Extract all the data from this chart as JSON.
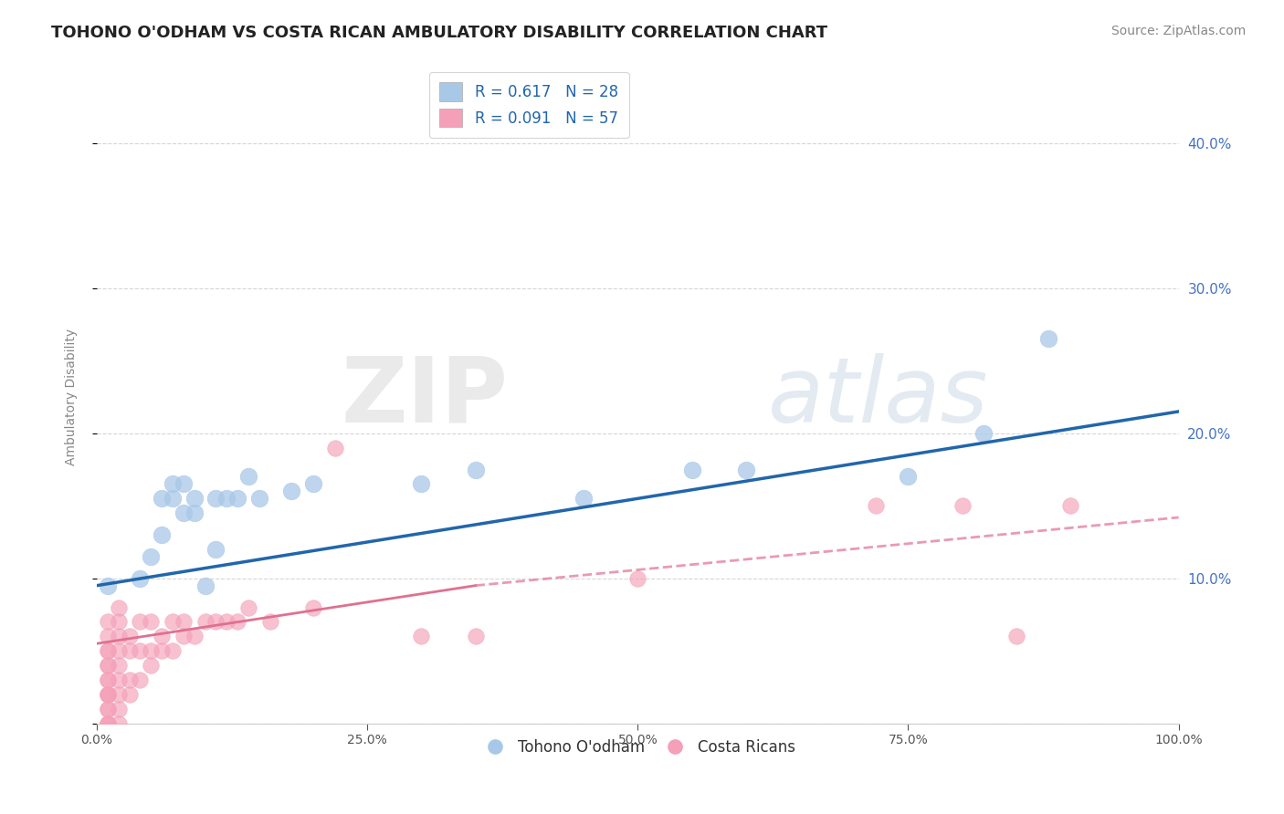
{
  "title": "TOHONO O'ODHAM VS COSTA RICAN AMBULATORY DISABILITY CORRELATION CHART",
  "source": "Source: ZipAtlas.com",
  "ylabel": "Ambulatory Disability",
  "legend_label_blue": "Tohono O'odham",
  "legend_label_pink": "Costa Ricans",
  "R_blue": 0.617,
  "N_blue": 28,
  "R_pink": 0.091,
  "N_pink": 57,
  "xlim": [
    0.0,
    1.0
  ],
  "ylim": [
    -0.02,
    0.46
  ],
  "plot_ylim": [
    0.0,
    0.45
  ],
  "xticks": [
    0.0,
    0.25,
    0.5,
    0.75,
    1.0
  ],
  "xtick_labels": [
    "0.0%",
    "25.0%",
    "50.0%",
    "75.0%",
    "100.0%"
  ],
  "yticks": [
    0.0,
    0.1,
    0.2,
    0.3,
    0.4
  ],
  "ytick_labels_right": [
    "",
    "10.0%",
    "20.0%",
    "30.0%",
    "40.0%"
  ],
  "blue_color": "#a8c8e8",
  "pink_color": "#f4a0b8",
  "blue_line_color": "#2166ac",
  "pink_line_color": "#e07090",
  "background_color": "#ffffff",
  "watermark_zip": "ZIP",
  "watermark_atlas": "atlas",
  "blue_x": [
    0.01,
    0.04,
    0.05,
    0.06,
    0.06,
    0.07,
    0.07,
    0.08,
    0.08,
    0.09,
    0.09,
    0.1,
    0.11,
    0.11,
    0.12,
    0.13,
    0.14,
    0.15,
    0.18,
    0.2,
    0.3,
    0.35,
    0.45,
    0.55,
    0.6,
    0.75,
    0.82,
    0.88
  ],
  "blue_y": [
    0.095,
    0.1,
    0.115,
    0.13,
    0.155,
    0.155,
    0.165,
    0.145,
    0.165,
    0.145,
    0.155,
    0.095,
    0.12,
    0.155,
    0.155,
    0.155,
    0.17,
    0.155,
    0.16,
    0.165,
    0.165,
    0.175,
    0.155,
    0.175,
    0.175,
    0.17,
    0.2,
    0.265
  ],
  "pink_x": [
    0.01,
    0.01,
    0.01,
    0.01,
    0.01,
    0.01,
    0.01,
    0.01,
    0.01,
    0.01,
    0.01,
    0.01,
    0.01,
    0.01,
    0.01,
    0.01,
    0.02,
    0.02,
    0.02,
    0.02,
    0.02,
    0.02,
    0.02,
    0.02,
    0.02,
    0.03,
    0.03,
    0.03,
    0.03,
    0.04,
    0.04,
    0.04,
    0.05,
    0.05,
    0.05,
    0.06,
    0.06,
    0.07,
    0.07,
    0.08,
    0.08,
    0.09,
    0.1,
    0.11,
    0.12,
    0.13,
    0.14,
    0.16,
    0.2,
    0.22,
    0.3,
    0.35,
    0.5,
    0.72,
    0.8,
    0.85,
    0.9
  ],
  "pink_y": [
    0.0,
    0.0,
    0.0,
    0.01,
    0.01,
    0.02,
    0.02,
    0.02,
    0.03,
    0.03,
    0.04,
    0.04,
    0.05,
    0.05,
    0.06,
    0.07,
    0.0,
    0.01,
    0.02,
    0.03,
    0.04,
    0.05,
    0.06,
    0.07,
    0.08,
    0.02,
    0.03,
    0.05,
    0.06,
    0.03,
    0.05,
    0.07,
    0.04,
    0.05,
    0.07,
    0.05,
    0.06,
    0.05,
    0.07,
    0.06,
    0.07,
    0.06,
    0.07,
    0.07,
    0.07,
    0.07,
    0.08,
    0.07,
    0.08,
    0.19,
    0.06,
    0.06,
    0.1,
    0.15,
    0.15,
    0.06,
    0.15
  ],
  "title_fontsize": 13,
  "axis_fontsize": 10,
  "legend_fontsize": 12,
  "source_fontsize": 10
}
